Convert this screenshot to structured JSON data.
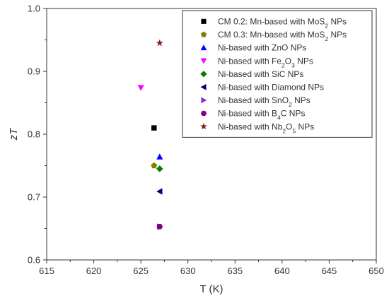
{
  "chart_data": {
    "type": "scatter",
    "xlabel": "T (K)",
    "ylabel": "zT",
    "xlim": [
      615,
      650
    ],
    "ylim": [
      0.6,
      1.0
    ],
    "x_ticks": [
      615,
      620,
      625,
      630,
      635,
      640,
      645,
      650
    ],
    "y_ticks": [
      0.6,
      0.7,
      0.8,
      0.9,
      1.0
    ],
    "x_tick_labels": [
      "615",
      "620",
      "625",
      "630",
      "635",
      "640",
      "645",
      "650"
    ],
    "y_tick_labels": [
      "0.6",
      "0.7",
      "0.8",
      "0.9",
      "1.0"
    ],
    "grid": false,
    "legend_position": "top-right",
    "series": [
      {
        "name": "CM 0.2: Mn-based with MoS₂ NPs",
        "marker": "square",
        "color": "#000000",
        "points": [
          {
            "x": 626.4,
            "y": 0.81
          }
        ]
      },
      {
        "name": "CM 0.3: Mn-based with MoS₂ NPs",
        "marker": "pentagon",
        "color": "#808000",
        "points": [
          {
            "x": 626.4,
            "y": 0.75
          }
        ]
      },
      {
        "name": "Ni-based with ZnO NPs",
        "marker": "triangle-up",
        "color": "#0000ff",
        "points": [
          {
            "x": 627.0,
            "y": 0.764
          }
        ]
      },
      {
        "name": "Ni-based with Fe₂O₃ NPs",
        "marker": "triangle-down",
        "color": "#ff00ff",
        "points": [
          {
            "x": 625.0,
            "y": 0.874
          }
        ]
      },
      {
        "name": "Ni-based with SiC NPs",
        "marker": "diamond",
        "color": "#008000",
        "points": [
          {
            "x": 627.0,
            "y": 0.745
          }
        ]
      },
      {
        "name": "Ni-based with Diamond NPs",
        "marker": "triangle-left",
        "color": "#000080",
        "points": [
          {
            "x": 627.0,
            "y": 0.709
          }
        ]
      },
      {
        "name": "Ni-based with SnO₂ NPs",
        "marker": "triangle-right",
        "color": "#8a2be2",
        "points": [
          {
            "x": 627.0,
            "y": 0.653
          }
        ]
      },
      {
        "name": "Ni-based with B₄C NPs",
        "marker": "hexagon",
        "color": "#800080",
        "points": [
          {
            "x": 627.0,
            "y": 0.653
          }
        ]
      },
      {
        "name": "Ni-based with Nb₂O₅ NPs",
        "marker": "star",
        "color": "#8b1a1a",
        "points": [
          {
            "x": 627.0,
            "y": 0.945
          }
        ]
      }
    ]
  }
}
